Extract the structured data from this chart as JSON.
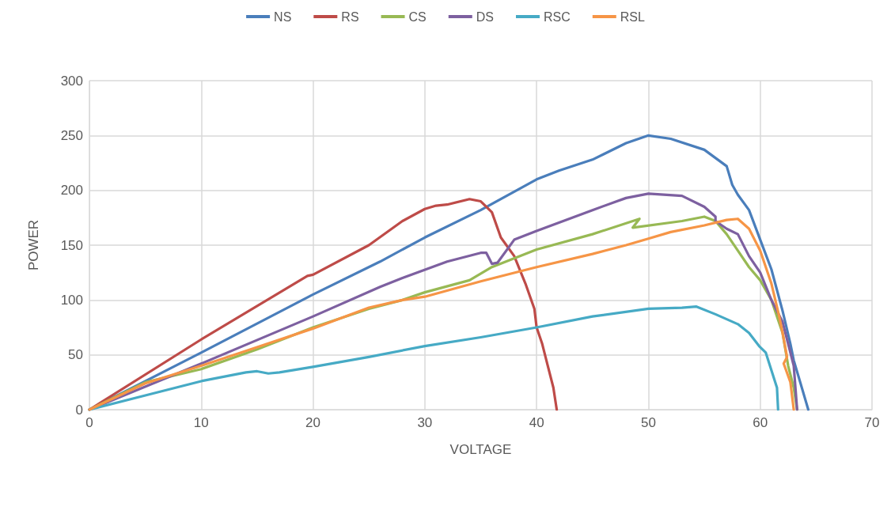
{
  "chart_data": {
    "type": "line",
    "xlabel": "VOLTAGE",
    "ylabel": "POWER",
    "xlim": [
      0,
      70
    ],
    "xticks": [
      0,
      10,
      20,
      30,
      40,
      50,
      60,
      70
    ],
    "ylim": [
      0,
      300
    ],
    "yticks": [
      0,
      50,
      100,
      150,
      200,
      250,
      300
    ],
    "grid": true,
    "legend": "top",
    "marker": "none",
    "line_style": "solid",
    "series": [
      {
        "name": "NS",
        "color": "#4a7ebb",
        "x": [
          0,
          10,
          20,
          26,
          30,
          35,
          40,
          42,
          45,
          48,
          50,
          52,
          55,
          57,
          57.5,
          58,
          59,
          60,
          61,
          62,
          62.7,
          63,
          64.3
        ],
        "values": [
          0,
          52,
          105,
          135,
          157,
          182,
          210,
          218,
          228,
          243,
          250,
          247,
          237,
          222,
          205,
          196,
          182,
          155,
          128,
          90,
          60,
          45,
          0
        ]
      },
      {
        "name": "RS",
        "color": "#be4b48",
        "x": [
          0,
          10,
          19.5,
          20,
          25,
          28,
          30,
          31,
          32,
          34,
          35,
          36,
          36.8,
          38,
          39,
          39.8,
          40,
          40.5,
          41,
          41.5,
          41.8
        ],
        "values": [
          0,
          64,
          122,
          123,
          150,
          172,
          183,
          186,
          187,
          192,
          190,
          180,
          157,
          140,
          115,
          92,
          75,
          60,
          40,
          20,
          0
        ]
      },
      {
        "name": "CS",
        "color": "#98b954",
        "x": [
          0,
          5,
          10,
          15,
          20,
          25,
          28,
          30,
          34,
          36,
          40,
          45,
          49.2,
          48.6,
          53,
          55,
          56,
          57,
          58,
          59,
          60,
          61,
          61.5,
          62,
          62.5,
          63,
          63.3
        ],
        "values": [
          0,
          25,
          37,
          55,
          75,
          92,
          100,
          107,
          118,
          130,
          146,
          160,
          174,
          166,
          172,
          176,
          172,
          160,
          145,
          130,
          118,
          100,
          85,
          70,
          40,
          20,
          0
        ]
      },
      {
        "name": "DS",
        "color": "#7d60a0",
        "x": [
          0,
          10,
          20,
          26,
          28,
          32,
          35,
          35.5,
          36,
          36.5,
          38,
          40,
          45,
          48,
          50,
          53,
          55,
          56,
          56,
          57,
          58,
          59,
          60,
          61,
          61.5,
          62,
          62.5,
          63,
          63.3
        ],
        "values": [
          0,
          42,
          85,
          112,
          120,
          135,
          143,
          143,
          133,
          134,
          155,
          163,
          182,
          193,
          197,
          195,
          185,
          176,
          172,
          165,
          160,
          140,
          125,
          100,
          90,
          80,
          60,
          40,
          0
        ]
      },
      {
        "name": "RSC",
        "color": "#46aac5",
        "x": [
          0,
          5,
          10,
          14,
          15,
          16,
          17,
          20,
          25,
          30,
          35,
          40,
          45,
          50,
          53,
          54.3,
          56,
          58,
          59,
          59.9,
          60.5,
          61.5,
          61.6
        ],
        "values": [
          0,
          13,
          26,
          34,
          35,
          33,
          34,
          39,
          48,
          58,
          66,
          75,
          85,
          92,
          93,
          94,
          87,
          78,
          70,
          58,
          52,
          20,
          0
        ]
      },
      {
        "name": "RSL",
        "color": "#f69546",
        "x": [
          0,
          5,
          10,
          15,
          20,
          25,
          28,
          30,
          35,
          40,
          45,
          48,
          50,
          52,
          55,
          57,
          58,
          59,
          60,
          61,
          61.7,
          62,
          62.4,
          62.1,
          62.7,
          63
        ],
        "values": [
          0,
          24,
          40,
          57,
          74,
          93,
          100,
          103,
          117,
          130,
          142,
          150,
          156,
          162,
          168,
          173,
          174,
          165,
          145,
          115,
          85,
          70,
          48,
          42,
          25,
          0
        ]
      }
    ]
  }
}
